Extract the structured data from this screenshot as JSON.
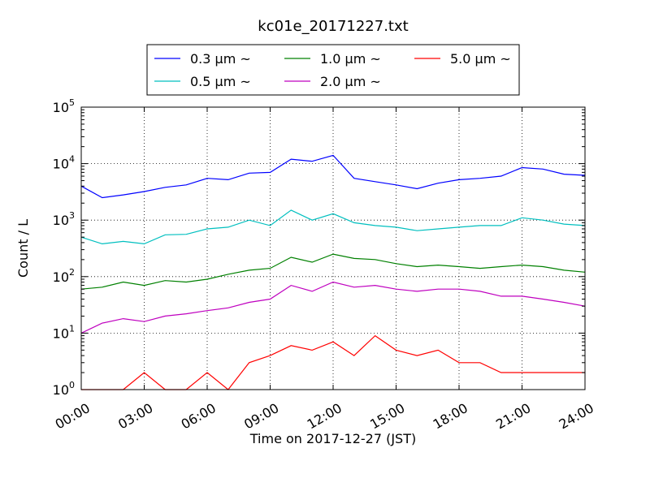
{
  "chart_data": {
    "type": "line",
    "title": "kc01e_20171227.txt",
    "xlabel": "Time on 2017-12-27 (JST)",
    "ylabel": "Count / L",
    "yscale": "log",
    "ylim": [
      1,
      100000
    ],
    "xlim": [
      "2017-12-27 00:00",
      "2017-12-28 00:00"
    ],
    "grid": true,
    "legend_position": "top-center-outside",
    "xticks": [
      "00:00",
      "03:00",
      "06:00",
      "09:00",
      "12:00",
      "15:00",
      "18:00",
      "21:00",
      "24:00"
    ],
    "yticks": [
      {
        "base": "10",
        "exp": "0"
      },
      {
        "base": "10",
        "exp": "1"
      },
      {
        "base": "10",
        "exp": "2"
      },
      {
        "base": "10",
        "exp": "3"
      },
      {
        "base": "10",
        "exp": "4"
      },
      {
        "base": "10",
        "exp": "5"
      }
    ],
    "x": [
      "00:00",
      "01:00",
      "02:00",
      "03:00",
      "04:00",
      "05:00",
      "06:00",
      "07:00",
      "08:00",
      "09:00",
      "10:00",
      "11:00",
      "12:00",
      "13:00",
      "14:00",
      "15:00",
      "16:00",
      "17:00",
      "18:00",
      "19:00",
      "20:00",
      "21:00",
      "22:00",
      "23:00",
      "24:00"
    ],
    "series": [
      {
        "name": "0.3 μm ~",
        "color": "#0000ff",
        "values": [
          4000,
          2500,
          2800,
          3200,
          3800,
          4200,
          5500,
          5200,
          6800,
          7000,
          12000,
          11000,
          14000,
          5500,
          4800,
          4200,
          3600,
          4500,
          5200,
          5500,
          6000,
          8500,
          8000,
          6500,
          6200
        ]
      },
      {
        "name": "0.5 μm ~",
        "color": "#00bfbf",
        "values": [
          500,
          380,
          420,
          380,
          550,
          560,
          700,
          750,
          1000,
          800,
          1500,
          1000,
          1300,
          900,
          800,
          750,
          650,
          700,
          750,
          800,
          800,
          1100,
          1000,
          850,
          800
        ]
      },
      {
        "name": "1.0 μm ~",
        "color": "#008000",
        "values": [
          60,
          65,
          80,
          70,
          85,
          80,
          90,
          110,
          130,
          140,
          220,
          180,
          250,
          210,
          200,
          170,
          150,
          160,
          150,
          140,
          150,
          160,
          150,
          130,
          120
        ]
      },
      {
        "name": "2.0 μm ~",
        "color": "#bf00bf",
        "values": [
          10,
          15,
          18,
          16,
          20,
          22,
          25,
          28,
          35,
          40,
          70,
          55,
          80,
          65,
          70,
          60,
          55,
          60,
          60,
          55,
          45,
          45,
          40,
          35,
          30
        ]
      },
      {
        "name": "5.0 μm ~",
        "color": "#ff0000",
        "values": [
          1,
          1,
          1,
          2,
          1,
          1,
          2,
          1,
          3,
          4,
          6,
          5,
          7,
          4,
          9,
          5,
          4,
          5,
          3,
          3,
          2,
          2,
          2,
          2,
          2
        ]
      }
    ]
  }
}
